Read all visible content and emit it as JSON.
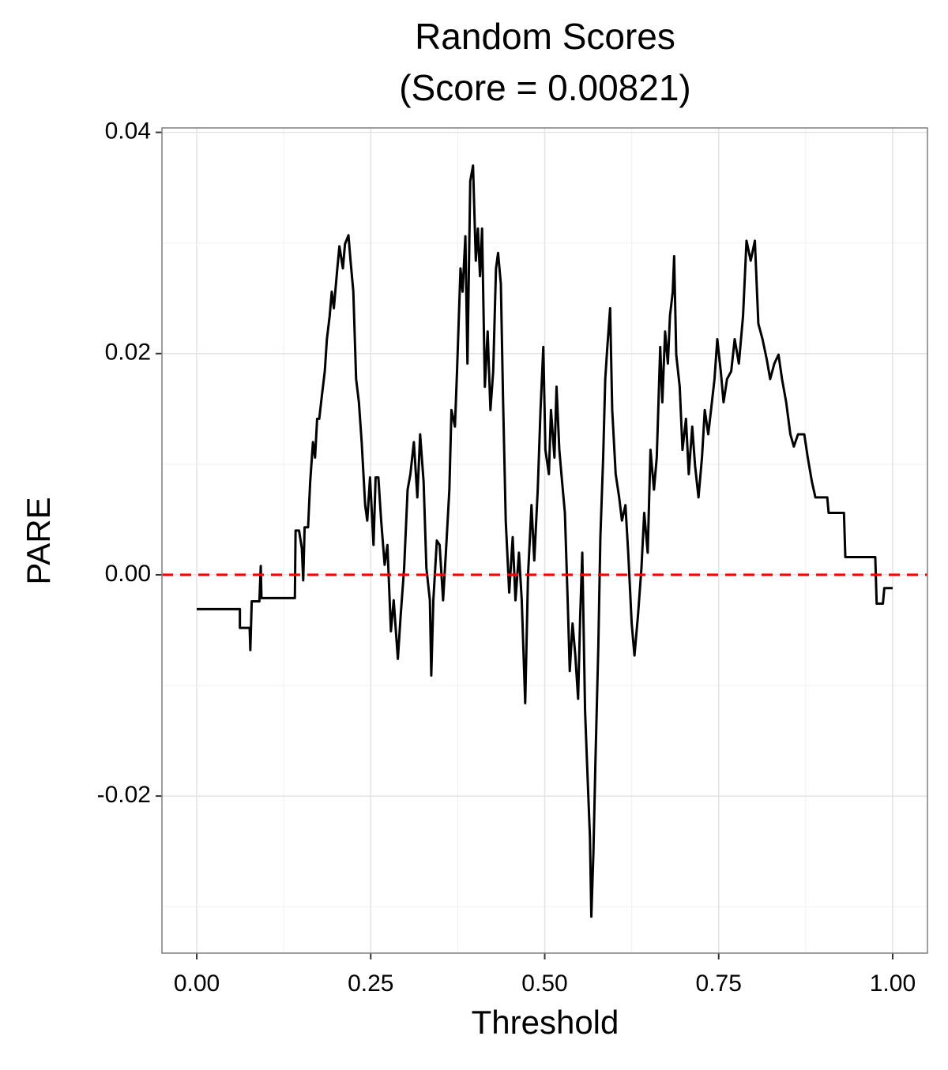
{
  "chart_data": {
    "type": "line",
    "title": "Random Scores",
    "subtitle": "(Score = 0.00821)",
    "x_label": "Threshold",
    "y_label": "PARE",
    "xlim": [
      -0.05,
      1.05
    ],
    "ylim": [
      -0.0342,
      0.0404
    ],
    "xticks": [
      {
        "value": 0,
        "label": "0.00"
      },
      0.25,
      {
        "value": 0.5,
        "label": "0.50"
      },
      0.75,
      {
        "value": 1,
        "label": "1.00"
      }
    ],
    "yticks": [
      -0.02,
      {
        "value": 0,
        "label": "0.00"
      },
      0.02,
      0.04
    ],
    "grid": true,
    "minor_grid": true,
    "reference_line": {
      "value": 0,
      "color": "#ff0000",
      "dashed": true
    },
    "series": [
      {
        "color": "#000000",
        "x": [
          0,
          0.062,
          0.062,
          0.076,
          0.077,
          0.079,
          0.09,
          0.092,
          0.093,
          0.141,
          0.142,
          0.147,
          0.151,
          0.153,
          0.155,
          0.16,
          0.163,
          0.167,
          0.17,
          0.173,
          0.176,
          0.18,
          0.184,
          0.187,
          0.191,
          0.194,
          0.197,
          0.202,
          0.205,
          0.21,
          0.213,
          0.218,
          0.221,
          0.225,
          0.229,
          0.233,
          0.237,
          0.242,
          0.245,
          0.249,
          0.254,
          0.257,
          0.261,
          0.265,
          0.27,
          0.274,
          0.279,
          0.283,
          0.289,
          0.293,
          0.298,
          0.303,
          0.307,
          0.312,
          0.317,
          0.321,
          0.326,
          0.33,
          0.335,
          0.337,
          0.34,
          0.345,
          0.349,
          0.354,
          0.358,
          0.363,
          0.366,
          0.371,
          0.374,
          0.379,
          0.382,
          0.386,
          0.389,
          0.393,
          0.397,
          0.401,
          0.404,
          0.407,
          0.41,
          0.414,
          0.418,
          0.422,
          0.426,
          0.43,
          0.433,
          0.437,
          0.44,
          0.444,
          0.449,
          0.454,
          0.458,
          0.463,
          0.467,
          0.472,
          0.476,
          0.481,
          0.485,
          0.49,
          0.494,
          0.498,
          0.501,
          0.506,
          0.509,
          0.514,
          0.517,
          0.521,
          0.525,
          0.529,
          0.533,
          0.536,
          0.54,
          0.544,
          0.548,
          0.551,
          0.554,
          0.558,
          0.561,
          0.565,
          0.567,
          0.57,
          0.573,
          0.577,
          0.58,
          0.584,
          0.587,
          0.59,
          0.594,
          0.597,
          0.602,
          0.607,
          0.611,
          0.616,
          0.62,
          0.625,
          0.629,
          0.634,
          0.639,
          0.643,
          0.648,
          0.652,
          0.657,
          0.661,
          0.666,
          0.669,
          0.673,
          0.677,
          0.68,
          0.684,
          0.686,
          0.689,
          0.694,
          0.698,
          0.703,
          0.707,
          0.712,
          0.716,
          0.721,
          0.726,
          0.73,
          0.735,
          0.739,
          0.744,
          0.748,
          0.753,
          0.757,
          0.762,
          0.768,
          0.773,
          0.779,
          0.785,
          0.79,
          0.796,
          0.802,
          0.807,
          0.813,
          0.819,
          0.824,
          0.83,
          0.836,
          0.841,
          0.847,
          0.853,
          0.858,
          0.864,
          0.873,
          0.878,
          0.884,
          0.889,
          0.906,
          0.908,
          0.93,
          0.932,
          0.975,
          0.977,
          0.986,
          0.988,
          1.0
        ],
        "values": [
          -0.0031,
          -0.0031,
          -0.0048,
          -0.0048,
          -0.0068,
          -0.0024,
          -0.0024,
          0.0008,
          -0.0021,
          -0.0021,
          0.004,
          0.004,
          0.0024,
          -0.0005,
          0.0043,
          0.0043,
          0.0084,
          0.012,
          0.0106,
          0.0141,
          0.0141,
          0.0163,
          0.0184,
          0.0213,
          0.0234,
          0.0256,
          0.0241,
          0.0277,
          0.0297,
          0.0277,
          0.0299,
          0.0307,
          0.0284,
          0.0256,
          0.0177,
          0.0156,
          0.012,
          0.0063,
          0.0049,
          0.0088,
          0.0027,
          0.0088,
          0.0088,
          0.0049,
          0.0009,
          0.0027,
          -0.0051,
          -0.0023,
          -0.0076,
          -0.0037,
          0.0006,
          0.0077,
          0.0091,
          0.012,
          0.007,
          0.0127,
          0.0084,
          0.0006,
          -0.0023,
          -0.0091,
          -0.0023,
          0.0031,
          0.0027,
          -0.0023,
          0.002,
          0.0077,
          0.0149,
          0.0134,
          0.0184,
          0.0277,
          0.0256,
          0.0306,
          0.0191,
          0.0356,
          0.037,
          0.0284,
          0.0313,
          0.027,
          0.0313,
          0.017,
          0.022,
          0.0149,
          0.0184,
          0.0277,
          0.0291,
          0.0263,
          0.0163,
          0.0049,
          -0.0016,
          0.0034,
          -0.0023,
          0.002,
          -0.0023,
          -0.0116,
          -0.0001,
          0.0063,
          0.0013,
          0.0077,
          0.0149,
          0.0206,
          0.0113,
          0.0091,
          0.0149,
          0.0106,
          0.017,
          0.0113,
          0.0084,
          0.0056,
          -0.0023,
          -0.0087,
          -0.0044,
          -0.0073,
          -0.0112,
          -0.0037,
          0.002,
          -0.0123,
          -0.0173,
          -0.0237,
          -0.0309,
          -0.0251,
          -0.0166,
          -0.0066,
          0.0034,
          0.0106,
          0.0177,
          0.0206,
          0.0241,
          0.0149,
          0.0091,
          0.007,
          0.0049,
          0.0063,
          0.002,
          -0.0044,
          -0.0073,
          -0.0037,
          0.0006,
          0.0056,
          0.002,
          0.0113,
          0.0077,
          0.0106,
          0.0206,
          0.0156,
          0.022,
          0.0191,
          0.0234,
          0.0256,
          0.0288,
          0.0199,
          0.017,
          0.0113,
          0.0141,
          0.0091,
          0.0134,
          0.0099,
          0.007,
          0.0106,
          0.0149,
          0.0127,
          0.0149,
          0.0177,
          0.0213,
          0.0184,
          0.0156,
          0.0177,
          0.0184,
          0.0213,
          0.0191,
          0.0234,
          0.0302,
          0.0284,
          0.0302,
          0.0227,
          0.0213,
          0.0195,
          0.0177,
          0.0191,
          0.0199,
          0.0177,
          0.0156,
          0.0127,
          0.0116,
          0.0127,
          0.0127,
          0.0106,
          0.0084,
          0.007,
          0.007,
          0.0056,
          0.0056,
          0.0016,
          0.0016,
          -0.0026,
          -0.0026,
          -0.0012,
          -0.0012
        ]
      }
    ]
  }
}
